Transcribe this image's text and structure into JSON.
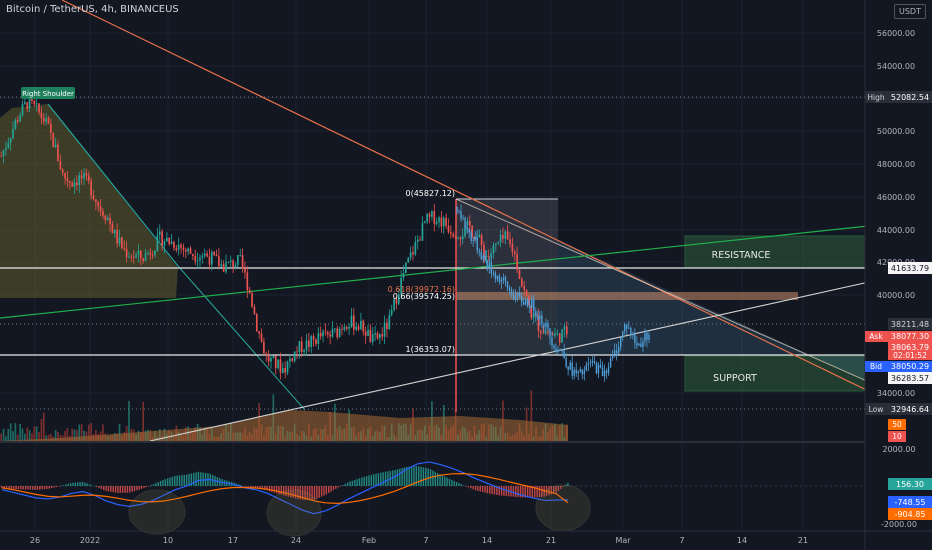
{
  "chart_title": "Bitcoin / TetherUS, 4h, BINANCEUS",
  "currency_badge": "USDT",
  "colors": {
    "background": "#131722",
    "up_candle": "#26a69a",
    "down_candle": "#ef5350",
    "projection_candle": "#4f9fd8",
    "trendline_descending": "#e8724a",
    "trendline_green": "#20b04b",
    "trendline_white": "#d6d6d6",
    "resistance_zone": "#2e5d3a",
    "macd_line": "#2962ff",
    "signal_line": "#ff6d00",
    "high_low_label": "#2a2e39",
    "ask_label": "#ef5350",
    "bid_label": "#2962ff"
  },
  "annotations": {
    "right_shoulder": "Right Shoulder",
    "resistance": "RESISTANCE",
    "support": "SUPPORT",
    "fib_0": "0(45827.12)",
    "fib_618": "0.618(39972.16)",
    "fib_66": "0.66(39574.25)",
    "fib_1": "1(36353.07)"
  },
  "price_labels": {
    "high_tag": "High",
    "high_value": "52082.54",
    "level_41633": "41633.79",
    "level_38211": "38211.48",
    "ask_tag": "Ask",
    "ask_value": "38077.30",
    "last_price": "38063.79",
    "countdown": "02:01:52",
    "bid_tag": "Bid",
    "bid_value": "38050.29",
    "level_36283": "36283.57",
    "low_tag": "Low",
    "low_value": "32946.64",
    "volume_ma": "50",
    "volume_val": "10"
  },
  "macd_labels": {
    "histogram": "156.30",
    "macd": "-748.55",
    "signal": "-904.85"
  },
  "chart_data": [
    {
      "type": "candlestick",
      "title": "Bitcoin / TetherUS, 4h, BINANCEUS",
      "x_ticks": [
        "26",
        "2022",
        "10",
        "17",
        "24",
        "Feb",
        "7",
        "14",
        "21",
        "Mar",
        "7",
        "14",
        "21"
      ],
      "y_ticks": [
        "56000.00",
        "54000.00",
        "52000.00",
        "50000.00",
        "48000.00",
        "46000.00",
        "44000.00",
        "42000.00",
        "40000.00",
        "34000.00"
      ],
      "ylim": [
        32000,
        57500
      ],
      "grid": true,
      "price_path": [
        [
          0,
          48500
        ],
        [
          1,
          49800
        ],
        [
          2,
          51000
        ],
        [
          3,
          51800
        ],
        [
          4,
          51300
        ],
        [
          5,
          50600
        ],
        [
          6,
          49200
        ],
        [
          7,
          47300
        ],
        [
          8,
          46900
        ],
        [
          9,
          47200
        ],
        [
          10,
          46700
        ],
        [
          11,
          45500
        ],
        [
          12,
          44800
        ],
        [
          13,
          43500
        ],
        [
          14,
          42700
        ],
        [
          15,
          42400
        ],
        [
          16,
          42300
        ],
        [
          17,
          42800
        ],
        [
          18,
          43500
        ],
        [
          19,
          43300
        ],
        [
          20,
          43100
        ],
        [
          21,
          42700
        ],
        [
          22,
          42500
        ],
        [
          23,
          42500
        ],
        [
          24,
          42200
        ],
        [
          25,
          41800
        ],
        [
          26,
          41900
        ],
        [
          27,
          42100
        ],
        [
          28,
          40500
        ],
        [
          29,
          38000
        ],
        [
          30,
          36200
        ],
        [
          31,
          35800
        ],
        [
          32,
          35500
        ],
        [
          33,
          36400
        ],
        [
          34,
          36900
        ],
        [
          35,
          37100
        ],
        [
          36,
          37500
        ],
        [
          37,
          37500
        ],
        [
          38,
          37800
        ],
        [
          39,
          38400
        ],
        [
          40,
          38300
        ],
        [
          41,
          38000
        ],
        [
          42,
          37200
        ],
        [
          43,
          37600
        ],
        [
          44,
          38500
        ],
        [
          45,
          40500
        ],
        [
          46,
          42000
        ],
        [
          47,
          43200
        ],
        [
          48,
          44500
        ],
        [
          49,
          44800
        ],
        [
          50,
          44500
        ],
        [
          51,
          44000
        ],
        [
          52,
          43800
        ],
        [
          53,
          44200
        ],
        [
          54,
          43400
        ],
        [
          55,
          42300
        ],
        [
          56,
          43000
        ],
        [
          57,
          43500
        ],
        [
          58,
          42700
        ],
        [
          59,
          40500
        ],
        [
          60,
          38900
        ],
        [
          61,
          38000
        ],
        [
          62,
          37700
        ],
        [
          63,
          37500
        ],
        [
          64,
          37800
        ]
      ],
      "projection_path": [
        [
          0,
          45400
        ],
        [
          1,
          44600
        ],
        [
          2,
          43800
        ],
        [
          3,
          43300
        ],
        [
          4,
          42600
        ],
        [
          5,
          42000
        ],
        [
          6,
          41500
        ],
        [
          7,
          41100
        ],
        [
          8,
          40800
        ],
        [
          9,
          40300
        ],
        [
          10,
          39900
        ],
        [
          11,
          39700
        ],
        [
          12,
          39600
        ],
        [
          13,
          39400
        ],
        [
          14,
          38800
        ],
        [
          15,
          38300
        ],
        [
          16,
          37500
        ],
        [
          17,
          36800
        ],
        [
          18,
          36600
        ],
        [
          19,
          35800
        ],
        [
          20,
          35300
        ],
        [
          21,
          35100
        ],
        [
          22,
          35400
        ],
        [
          23,
          35900
        ],
        [
          24,
          35600
        ],
        [
          25,
          35300
        ],
        [
          26,
          35700
        ],
        [
          27,
          36400
        ],
        [
          28,
          37200
        ],
        [
          29,
          38300
        ],
        [
          30,
          37600
        ],
        [
          31,
          36900
        ],
        [
          32,
          37300
        ],
        [
          33,
          37800
        ]
      ],
      "horizontal_levels": [
        52082.54,
        41633.79,
        38211.48,
        36283.57,
        32946.64
      ],
      "resistance_zone": [
        41700,
        43600
      ],
      "support_zone": [
        34100,
        36300
      ],
      "fibonacci": {
        "0": 45827.12,
        "0.618": 39972.16,
        "0.66": 39574.25,
        "1": 36353.07
      }
    },
    {
      "type": "histogram",
      "title": "MACD",
      "y_ticks": [
        "2000.00",
        "-2000.00"
      ],
      "ylim": [
        -2400,
        2400
      ],
      "macd": [
        -200,
        -350,
        -500,
        -650,
        -700,
        -600,
        -400,
        -300,
        -500,
        -800,
        -1000,
        -1100,
        -1000,
        -800,
        -500,
        -200,
        0,
        300,
        350,
        200,
        100,
        -100,
        -200,
        -400,
        -700,
        -1000,
        -1300,
        -1500,
        -1350,
        -1050,
        -700,
        -400,
        -100,
        200,
        500,
        900,
        1200,
        1300,
        1150,
        950,
        700,
        400,
        150,
        -100,
        -300,
        -500,
        -650,
        -780,
        -760,
        -748.55
      ],
      "signal": [
        -100,
        -200,
        -330,
        -460,
        -560,
        -590,
        -550,
        -500,
        -500,
        -560,
        -660,
        -770,
        -840,
        -860,
        -810,
        -700,
        -560,
        -400,
        -260,
        -150,
        -80,
        -80,
        -110,
        -180,
        -300,
        -450,
        -620,
        -800,
        -910,
        -940,
        -890,
        -790,
        -650,
        -480,
        -280,
        -40,
        220,
        450,
        590,
        660,
        670,
        610,
        500,
        360,
        210,
        60,
        -80,
        -260,
        -430,
        -904.85
      ]
    }
  ]
}
